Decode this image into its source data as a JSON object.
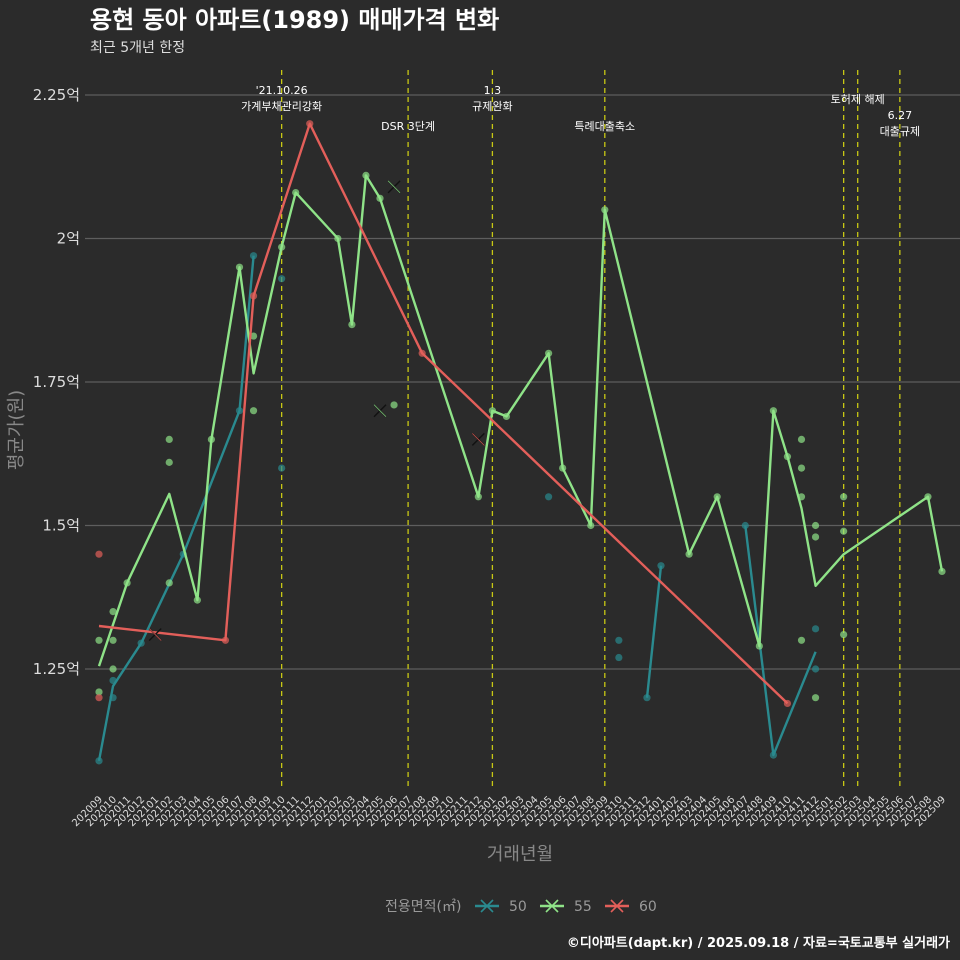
{
  "chart_data": {
    "type": "line",
    "title": "용현 동아 아파트(1989) 매매가격 변화",
    "subtitle": "최근 5개년 한정",
    "xlabel": "거래년월",
    "ylabel": "평균가(원)",
    "ylim": [
      1.04,
      2.3
    ],
    "y_ticks": [
      {
        "value": 1.25,
        "label": "1.25억"
      },
      {
        "value": 1.5,
        "label": "1.5억"
      },
      {
        "value": 1.75,
        "label": "1.75억"
      },
      {
        "value": 2.0,
        "label": "2억"
      },
      {
        "value": 2.25,
        "label": "2.25억"
      }
    ],
    "categories": [
      "202009",
      "202010",
      "202011",
      "202012",
      "202101",
      "202102",
      "202103",
      "202104",
      "202105",
      "202106",
      "202107",
      "202108",
      "202109",
      "202110",
      "202111",
      "202112",
      "202201",
      "202202",
      "202203",
      "202204",
      "202205",
      "202206",
      "202207",
      "202208",
      "202209",
      "202210",
      "202211",
      "202212",
      "202301",
      "202302",
      "202303",
      "202304",
      "202305",
      "202306",
      "202307",
      "202308",
      "202309",
      "202310",
      "202311",
      "202312",
      "202401",
      "202402",
      "202403",
      "202404",
      "202405",
      "202406",
      "202407",
      "202408",
      "202409",
      "202410",
      "202411",
      "202412",
      "202501",
      "202502",
      "202503",
      "202504",
      "202505",
      "202506",
      "202507",
      "202508",
      "202509"
    ],
    "series": [
      {
        "name": "50",
        "color": "#2a8a8f",
        "line": [
          [
            "202009",
            1.09
          ],
          [
            "202010",
            1.22
          ],
          [
            "202012",
            1.295
          ],
          [
            "202103",
            1.45
          ],
          [
            "202107",
            1.7
          ],
          [
            "202108",
            1.97
          ]
        ],
        "line2": [
          [
            "202110",
            1.6
          ]
        ],
        "line3": [
          [
            "202312",
            1.2
          ],
          [
            "202401",
            1.43
          ]
        ],
        "line4": [
          [
            "202407",
            1.5
          ],
          [
            "202409",
            1.1
          ],
          [
            "202412",
            1.28
          ]
        ],
        "points": [
          [
            "202009",
            1.09
          ],
          [
            "202010",
            1.23
          ],
          [
            "202010",
            1.2
          ],
          [
            "202012",
            1.295
          ],
          [
            "202103",
            1.45
          ],
          [
            "202107",
            1.7
          ],
          [
            "202108",
            1.97
          ],
          [
            "202110",
            1.93
          ],
          [
            "202110",
            1.6
          ],
          [
            "202305",
            1.55
          ],
          [
            "202310",
            1.3
          ],
          [
            "202310",
            1.27
          ],
          [
            "202312",
            1.2
          ],
          [
            "202401",
            1.43
          ],
          [
            "202407",
            1.5
          ],
          [
            "202409",
            1.1
          ],
          [
            "202412",
            1.32
          ],
          [
            "202412",
            1.25
          ]
        ],
        "cancelled": []
      },
      {
        "name": "55",
        "color": "#8fe388",
        "line": [
          [
            "202009",
            1.255
          ],
          [
            "202011",
            1.4
          ],
          [
            "202102",
            1.555
          ],
          [
            "202104",
            1.37
          ],
          [
            "202105",
            1.65
          ],
          [
            "202107",
            1.95
          ],
          [
            "202108",
            1.765
          ],
          [
            "202110",
            1.985
          ],
          [
            "202111",
            2.08
          ],
          [
            "202202",
            2.0
          ],
          [
            "202203",
            1.85
          ],
          [
            "202204",
            2.11
          ],
          [
            "202205",
            2.07
          ],
          [
            "202212",
            1.55
          ],
          [
            "202301",
            1.7
          ],
          [
            "202302",
            1.69
          ],
          [
            "202305",
            1.8
          ],
          [
            "202306",
            1.6
          ],
          [
            "202308",
            1.5
          ],
          [
            "202309",
            2.05
          ],
          [
            "202403",
            1.45
          ],
          [
            "202405",
            1.55
          ],
          [
            "202408",
            1.29
          ],
          [
            "202409",
            1.7
          ],
          [
            "202410",
            1.62
          ],
          [
            "202411",
            1.53
          ],
          [
            "202412",
            1.395
          ],
          [
            "202502",
            1.45
          ],
          [
            "202508",
            1.55
          ],
          [
            "202509",
            1.42
          ]
        ],
        "points": [
          [
            "202009",
            1.3
          ],
          [
            "202009",
            1.21
          ],
          [
            "202010",
            1.35
          ],
          [
            "202010",
            1.3
          ],
          [
            "202010",
            1.25
          ],
          [
            "202011",
            1.4
          ],
          [
            "202102",
            1.65
          ],
          [
            "202102",
            1.61
          ],
          [
            "202102",
            1.4
          ],
          [
            "202104",
            1.37
          ],
          [
            "202105",
            1.65
          ],
          [
            "202107",
            1.95
          ],
          [
            "202108",
            1.83
          ],
          [
            "202108",
            1.7
          ],
          [
            "202110",
            1.985
          ],
          [
            "202111",
            2.08
          ],
          [
            "202202",
            2.0
          ],
          [
            "202203",
            1.85
          ],
          [
            "202204",
            2.11
          ],
          [
            "202205",
            2.07
          ],
          [
            "202206",
            1.71
          ],
          [
            "202212",
            1.55
          ],
          [
            "202301",
            1.7
          ],
          [
            "202302",
            1.69
          ],
          [
            "202305",
            1.8
          ],
          [
            "202306",
            1.6
          ],
          [
            "202308",
            1.5
          ],
          [
            "202309",
            2.05
          ],
          [
            "202403",
            1.45
          ],
          [
            "202405",
            1.55
          ],
          [
            "202408",
            1.29
          ],
          [
            "202409",
            1.7
          ],
          [
            "202410",
            1.62
          ],
          [
            "202411",
            1.65
          ],
          [
            "202411",
            1.6
          ],
          [
            "202411",
            1.55
          ],
          [
            "202411",
            1.3
          ],
          [
            "202412",
            1.5
          ],
          [
            "202412",
            1.48
          ],
          [
            "202412",
            1.2
          ],
          [
            "202502",
            1.55
          ],
          [
            "202502",
            1.49
          ],
          [
            "202502",
            1.31
          ],
          [
            "202508",
            1.55
          ],
          [
            "202509",
            1.42
          ]
        ],
        "cancelled": [
          [
            "202206",
            2.09
          ],
          [
            "202205",
            1.7
          ]
        ]
      },
      {
        "name": "60",
        "color": "#e35f5a",
        "line": [
          [
            "202009",
            1.325
          ],
          [
            "202106",
            1.3
          ],
          [
            "202108",
            1.9
          ],
          [
            "202112",
            2.2
          ],
          [
            "202208",
            1.8
          ],
          [
            "202410",
            1.19
          ]
        ],
        "points": [
          [
            "202009",
            1.45
          ],
          [
            "202009",
            1.2
          ],
          [
            "202106",
            1.3
          ],
          [
            "202108",
            1.9
          ],
          [
            "202112",
            2.2
          ],
          [
            "202208",
            1.8
          ],
          [
            "202410",
            1.19
          ]
        ],
        "cancelled": [
          [
            "202101",
            1.31
          ],
          [
            "202212",
            1.65
          ]
        ]
      }
    ],
    "events": [
      {
        "month": "202110",
        "lines": [
          "'21.10.26",
          "가계부채관리강화"
        ],
        "level": 1
      },
      {
        "month": "202207",
        "lines": [
          "DSR 3단계"
        ],
        "level": 2
      },
      {
        "month": "202301",
        "lines": [
          "1.3",
          "규제완화"
        ],
        "level": 1
      },
      {
        "month": "202309",
        "lines": [
          "특례대출축소"
        ],
        "level": 2
      },
      {
        "month": "202502",
        "lines": [],
        "level": 0
      },
      {
        "month": "202503",
        "lines": [
          "토허제 해제"
        ],
        "level": 1
      },
      {
        "month": "202506",
        "lines": [
          "6.27",
          "대출규제"
        ],
        "level": 3
      }
    ],
    "legend": {
      "title": "전용면적(㎡)",
      "position": "bottom",
      "items": [
        "50",
        "55",
        "60"
      ]
    },
    "caption": "©디아파트(dapt.kr) / 2025.09.18 / 자료=국토교통부 실거래가"
  }
}
